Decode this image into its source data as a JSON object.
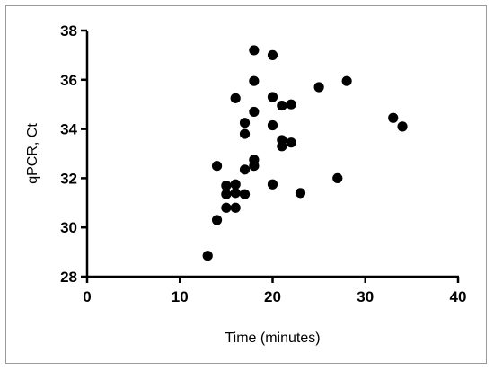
{
  "chart_data": {
    "type": "scatter",
    "title": "",
    "xlabel": "Time (minutes)",
    "ylabel": "qPCR, Ct",
    "xlim": [
      0,
      40
    ],
    "ylim": [
      28,
      38
    ],
    "xticks": [
      0,
      10,
      20,
      30,
      40
    ],
    "yticks": [
      28,
      30,
      32,
      34,
      36,
      38
    ],
    "grid": false,
    "marker_color": "#000000",
    "series": [
      {
        "points": [
          {
            "x": 13,
            "y": 28.85
          },
          {
            "x": 14,
            "y": 30.3
          },
          {
            "x": 14,
            "y": 32.5
          },
          {
            "x": 15,
            "y": 31.7
          },
          {
            "x": 15,
            "y": 31.35
          },
          {
            "x": 15,
            "y": 30.8
          },
          {
            "x": 16,
            "y": 31.75
          },
          {
            "x": 16,
            "y": 31.4
          },
          {
            "x": 16,
            "y": 30.8
          },
          {
            "x": 16,
            "y": 35.25
          },
          {
            "x": 17,
            "y": 34.25
          },
          {
            "x": 17,
            "y": 33.8
          },
          {
            "x": 17,
            "y": 32.35
          },
          {
            "x": 17,
            "y": 31.35
          },
          {
            "x": 18,
            "y": 37.2
          },
          {
            "x": 18,
            "y": 35.95
          },
          {
            "x": 18,
            "y": 34.7
          },
          {
            "x": 18,
            "y": 32.75
          },
          {
            "x": 18,
            "y": 32.5
          },
          {
            "x": 20,
            "y": 37.0
          },
          {
            "x": 20,
            "y": 35.3
          },
          {
            "x": 20,
            "y": 34.15
          },
          {
            "x": 20,
            "y": 31.75
          },
          {
            "x": 21,
            "y": 34.95
          },
          {
            "x": 21,
            "y": 33.55
          },
          {
            "x": 21,
            "y": 33.3
          },
          {
            "x": 22,
            "y": 35.0
          },
          {
            "x": 22,
            "y": 33.45
          },
          {
            "x": 23,
            "y": 31.4
          },
          {
            "x": 25,
            "y": 35.7
          },
          {
            "x": 27,
            "y": 32.0
          },
          {
            "x": 28,
            "y": 35.95
          },
          {
            "x": 33,
            "y": 34.45
          },
          {
            "x": 34,
            "y": 34.1
          }
        ]
      }
    ]
  }
}
